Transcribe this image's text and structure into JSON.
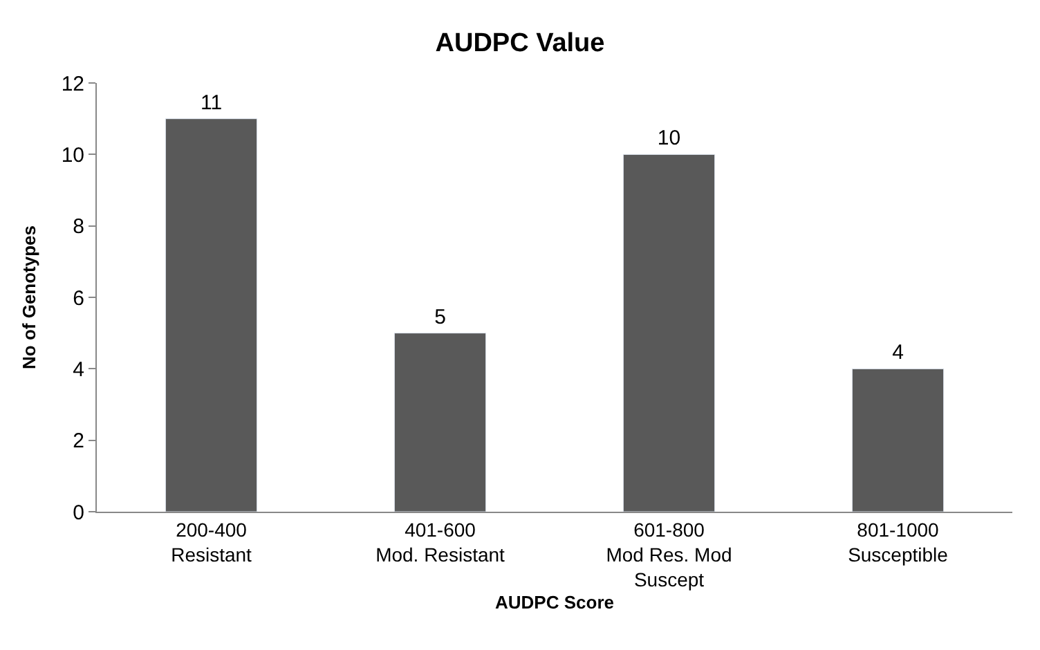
{
  "chart_data": {
    "type": "bar",
    "title": "AUDPC Value",
    "xlabel": "AUDPC Score",
    "ylabel": "No of Genotypes",
    "categories": [
      "200-400\nResistant",
      "401-600\nMod. Resistant",
      "601-800\nMod Res. Mod\nSuscept",
      "801-1000\nSusceptible"
    ],
    "values": [
      11,
      5,
      10,
      4
    ],
    "color": "#595959",
    "ylim": [
      0,
      12
    ],
    "yticks": [
      0,
      2,
      4,
      6,
      8,
      10,
      12
    ],
    "legend": false,
    "data_labels": true
  }
}
